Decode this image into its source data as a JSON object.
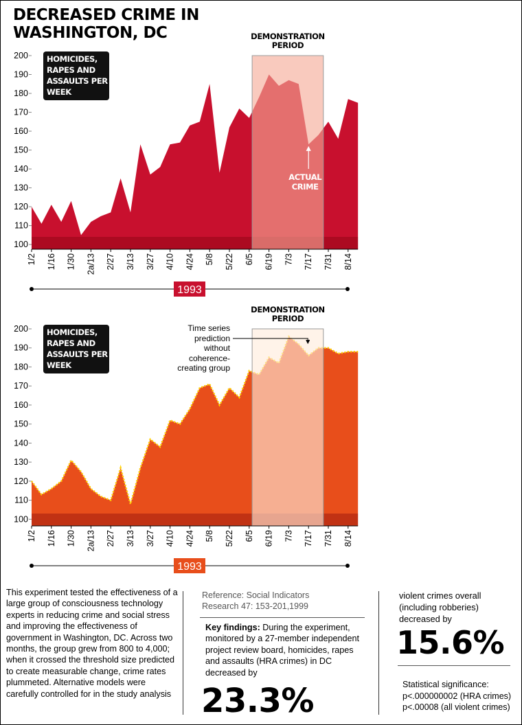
{
  "title": "DECREASED CRIME IN WASHINGTON, DC",
  "chart_data": [
    {
      "type": "area",
      "ylabel": "HOMICIDES, RAPES AND ASSAULTS PER WEEK",
      "xlabel": "1993",
      "categories": [
        "1/2",
        null,
        "1/16",
        null,
        "1/30",
        null,
        "2a/13",
        null,
        "2/27",
        null,
        "3/13",
        null,
        "3/27",
        null,
        "4/10",
        null,
        "4/24",
        null,
        "5/8",
        null,
        "5/22",
        null,
        "6/5",
        null,
        "6/19",
        null,
        "7/3",
        null,
        "7/17",
        null,
        "7/31",
        null,
        "8/14",
        null
      ],
      "values": [
        120,
        111,
        121,
        112,
        123,
        105,
        112,
        115,
        117,
        135,
        117,
        153,
        137,
        141,
        153,
        154,
        163,
        165,
        185,
        138,
        162,
        172,
        167,
        178,
        190,
        184,
        187,
        185,
        153,
        158,
        165,
        156,
        177,
        175
      ],
      "color": "#c8102e",
      "ylim": [
        97.5,
        200
      ],
      "yticks": [
        100,
        110,
        120,
        130,
        140,
        150,
        160,
        170,
        180,
        190,
        200
      ],
      "highlight": {
        "label": "DEMONSTRATION PERIOD",
        "range": [
          22.3,
          29.5
        ],
        "color": "rgba(245,170,150,0.62)"
      },
      "annotation": {
        "text": "ACTUAL CRIME",
        "index": 28
      }
    },
    {
      "type": "area",
      "ylabel": "HOMICIDES, RAPES AND ASSAULTS PER WEEK",
      "xlabel": "1993",
      "categories": [
        "1/2",
        null,
        "1/16",
        null,
        "1/30",
        null,
        "2a/13",
        null,
        "2/27",
        null,
        "3/13",
        null,
        "3/27",
        null,
        "4/10",
        null,
        "4/24",
        null,
        "5/8",
        null,
        "5/22",
        null,
        "6/5",
        null,
        "6/19",
        null,
        "7/3",
        null,
        "7/17",
        null,
        "7/31",
        null,
        "8/14",
        null
      ],
      "values": [
        120,
        113,
        116,
        120,
        131,
        125,
        116,
        112,
        110,
        127,
        108,
        127,
        142,
        138,
        152,
        150,
        158,
        169,
        171,
        160,
        169,
        164,
        178,
        176,
        185,
        182,
        196,
        192,
        186,
        190,
        190,
        187,
        188,
        188
      ],
      "color": "#e84e1b",
      "line_color": "#ffd200",
      "ylim": [
        96.5,
        200
      ],
      "yticks": [
        100,
        110,
        120,
        130,
        140,
        150,
        160,
        170,
        180,
        190,
        200
      ],
      "highlight": {
        "label": "DEMONSTRATION PERIOD",
        "range": [
          22.3,
          29.5
        ],
        "color": "rgba(255,235,220,0.62)"
      },
      "annotation": {
        "text": "Time series prediction without coherence-creating group",
        "index": 28
      }
    }
  ],
  "notes": {
    "description": "This experiment tested the effectiveness of a large group of consciousness technology experts in reducing crime and social stress and improving the effectiveness of government in Washington, DC. Across two months, the group grew from 800 to 4,000; when it crossed the threshold size predicted to create measurable change, crime rates plummeted. Alternative models were carefully controlled for in the study analysis",
    "reference": "Reference: Social Indicators Research 47: 153-201,1999",
    "key_label": "Key findings:",
    "key_text": "During the experiment, monitored by a 27-member independent project review board, homicides, rapes and assaults (HRA crimes) in DC decreased by",
    "key_value": "23.3%",
    "violent_text": "violent crimes overall (including robberies) decreased by",
    "violent_value": "15.6%",
    "significance_title": "Statistical significance:",
    "significance_1": "p<.000000002 (HRA crimes)",
    "significance_2": "p<.00008 (all violent crimes)"
  }
}
